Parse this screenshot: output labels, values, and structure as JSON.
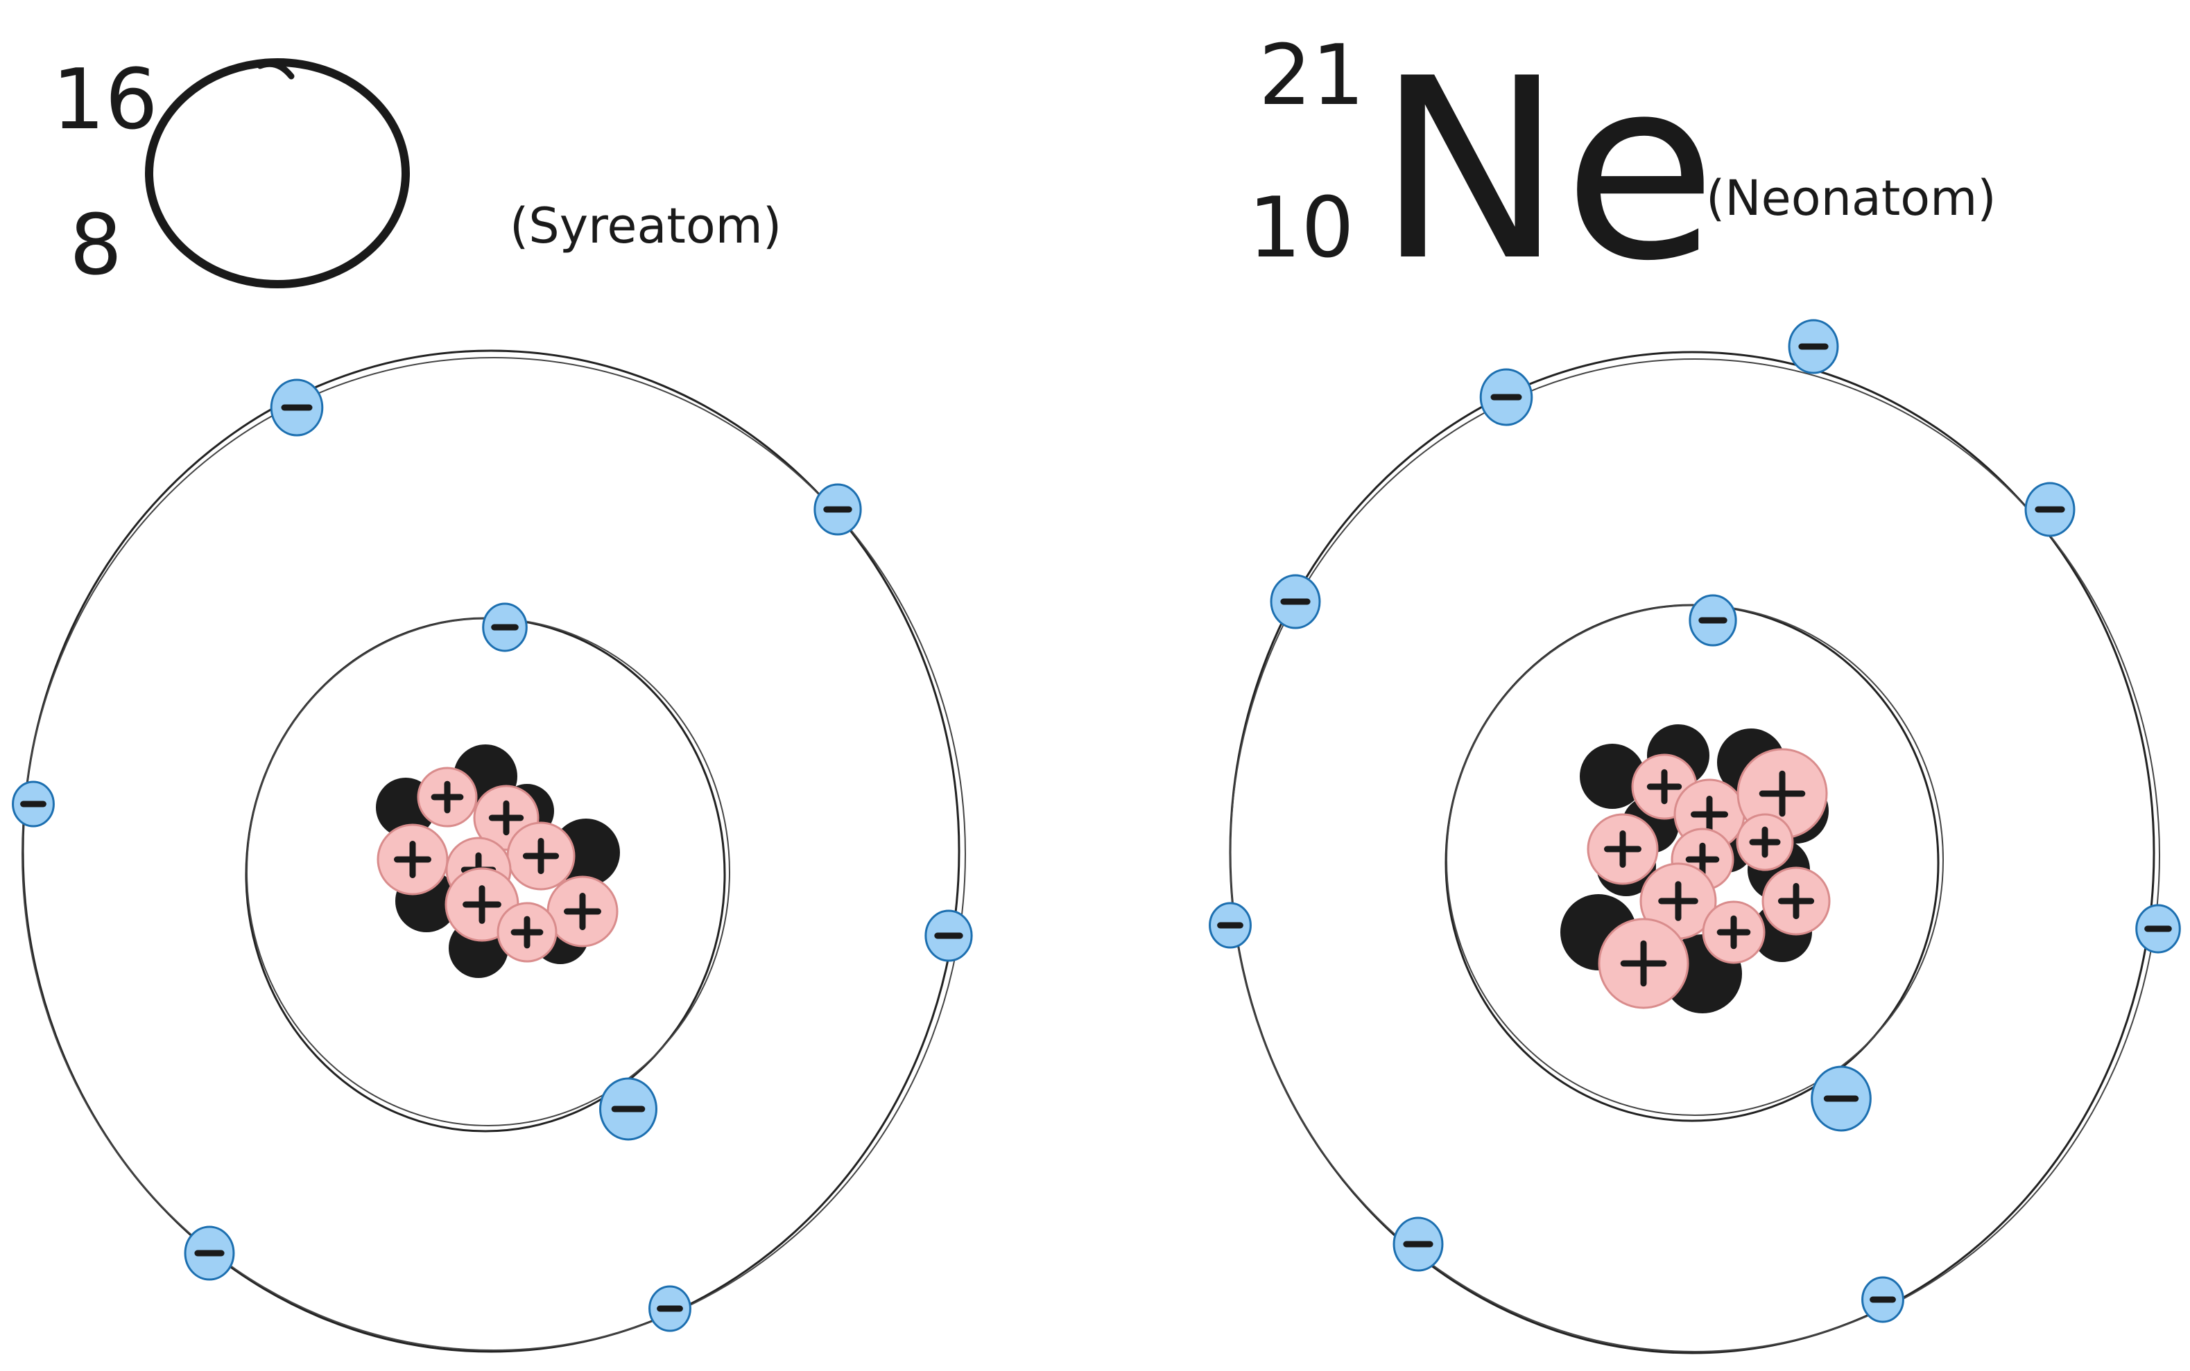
{
  "atoms": [
    {
      "mass_number": "16",
      "atomic_number": "8",
      "symbol": "O",
      "name_label": "(Syreatom)",
      "protons": 8,
      "neutrons": 8,
      "electrons": {
        "inner_shell": 2,
        "outer_shell": 6
      }
    },
    {
      "mass_number": "21",
      "atomic_number": "10",
      "symbol": "Ne",
      "name_label": "(Neonatom)",
      "protons": 10,
      "neutrons": 11,
      "electrons": {
        "inner_shell": 2,
        "outer_shell": 8
      }
    }
  ],
  "colors": {
    "electron": "#9fd0f5",
    "proton": "#f7c1c1",
    "neutron": "#1c1c1c",
    "ink": "#1a1a1a"
  }
}
